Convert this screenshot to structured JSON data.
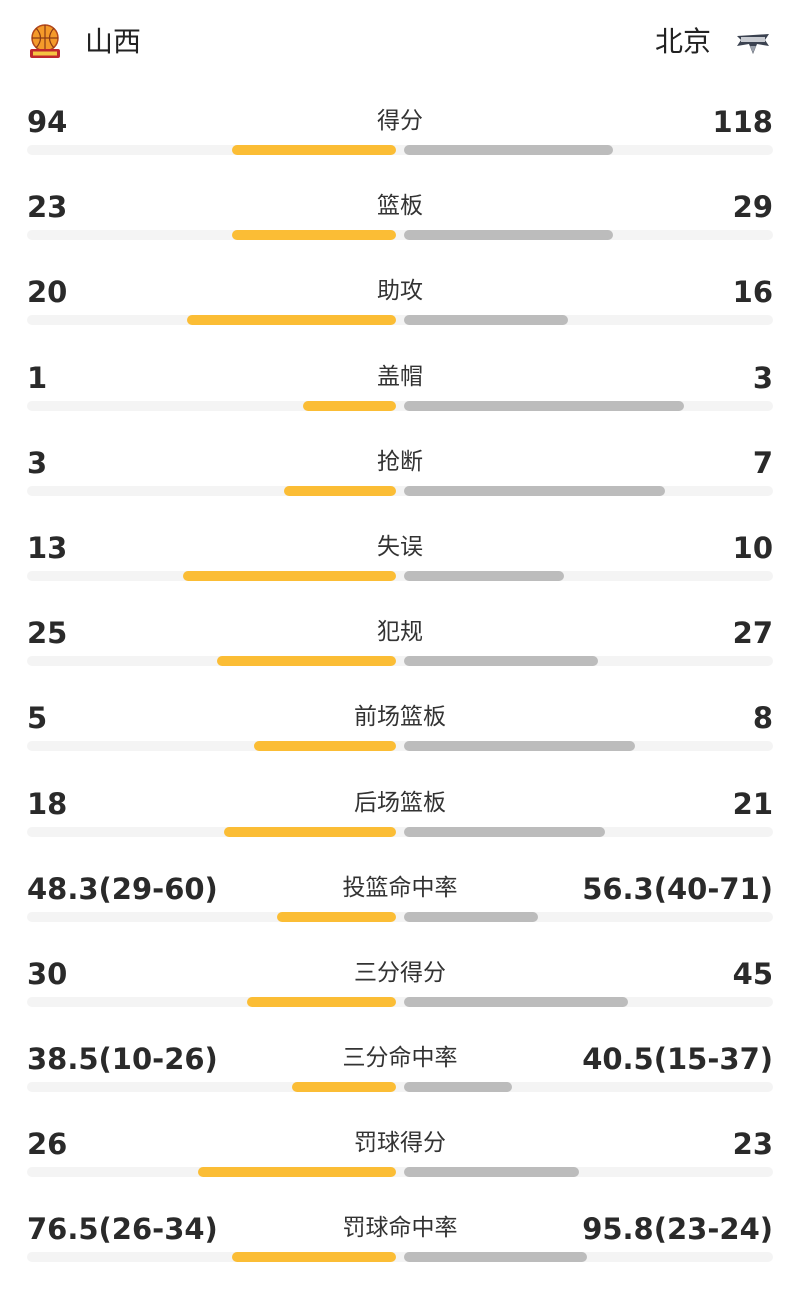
{
  "header": {
    "home_team": "山西",
    "away_team": "北京",
    "home_logo_icon": "shanxi-loongs-logo",
    "away_logo_icon": "beijing-ducks-logo"
  },
  "colors": {
    "home_bar": "#fbbd35",
    "away_bar": "#bcbcbc",
    "track": "#f4f4f4"
  },
  "stats": [
    {
      "label": "得分",
      "home": "94",
      "away": "118",
      "home_share": 0.44,
      "away_share": 0.56
    },
    {
      "label": "篮板",
      "home": "23",
      "away": "29",
      "home_share": 0.44,
      "away_share": 0.56
    },
    {
      "label": "助攻",
      "home": "20",
      "away": "16",
      "home_share": 0.56,
      "away_share": 0.44
    },
    {
      "label": "盖帽",
      "home": "1",
      "away": "3",
      "home_share": 0.25,
      "away_share": 0.75
    },
    {
      "label": "抢断",
      "home": "3",
      "away": "7",
      "home_share": 0.3,
      "away_share": 0.7
    },
    {
      "label": "失误",
      "home": "13",
      "away": "10",
      "home_share": 0.57,
      "away_share": 0.43
    },
    {
      "label": "犯规",
      "home": "25",
      "away": "27",
      "home_share": 0.48,
      "away_share": 0.52
    },
    {
      "label": "前场篮板",
      "home": "5",
      "away": "8",
      "home_share": 0.38,
      "away_share": 0.62
    },
    {
      "label": "后场篮板",
      "home": "18",
      "away": "21",
      "home_share": 0.46,
      "away_share": 0.54
    },
    {
      "label": "投篮命中率",
      "home": "48.3(29-60)",
      "away": "56.3(40-71)",
      "home_share": 0.32,
      "away_share": 0.36
    },
    {
      "label": "三分得分",
      "home": "30",
      "away": "45",
      "home_share": 0.4,
      "away_share": 0.6
    },
    {
      "label": "三分命中率",
      "home": "38.5(10-26)",
      "away": "40.5(15-37)",
      "home_share": 0.28,
      "away_share": 0.29
    },
    {
      "label": "罚球得分",
      "home": "26",
      "away": "23",
      "home_share": 0.53,
      "away_share": 0.47
    },
    {
      "label": "罚球命中率",
      "home": "76.5(26-34)",
      "away": "95.8(23-24)",
      "home_share": 0.44,
      "away_share": 0.49
    }
  ]
}
